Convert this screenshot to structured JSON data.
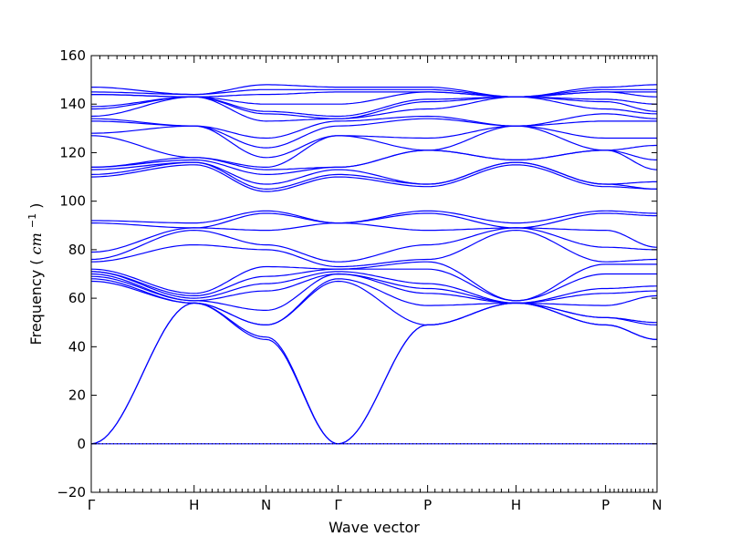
{
  "chart_data": {
    "type": "line",
    "xlabel": "Wave vector",
    "ylabel": "Frequency",
    "ylabel_unit_base": "cm",
    "ylabel_unit_exp": "−1",
    "ylim": [
      -20,
      160
    ],
    "y_ticks": [
      -20,
      0,
      20,
      40,
      60,
      80,
      100,
      120,
      140,
      160
    ],
    "y_tick_labels": [
      "−20",
      "0",
      "20",
      "40",
      "60",
      "80",
      "100",
      "120",
      "140",
      "160"
    ],
    "x_ticks": [
      {
        "label": "Γ",
        "pos": 0
      },
      {
        "label": "H",
        "pos": 1
      },
      {
        "label": "N",
        "pos": 1.7
      },
      {
        "label": "Γ",
        "pos": 2.4
      },
      {
        "label": "P",
        "pos": 3.27
      },
      {
        "label": "H",
        "pos": 4.13
      },
      {
        "label": "P",
        "pos": 5.0
      },
      {
        "label": "N",
        "pos": 5.5
      }
    ],
    "xlim": [
      0,
      5.5
    ],
    "zero_line": true,
    "line_color": "#0000ff",
    "band_nodes": [
      [
        0,
        0,
        0,
        0,
        0,
        0,
        0,
        0
      ],
      [
        0,
        58,
        44,
        0,
        49,
        58,
        49,
        43
      ],
      [
        0,
        58,
        43,
        0,
        49,
        58,
        49,
        43
      ],
      [
        67,
        58,
        49,
        67,
        49,
        58,
        52,
        49
      ],
      [
        68,
        58,
        49,
        68,
        57,
        58,
        52,
        50
      ],
      [
        69,
        59,
        55,
        70,
        62,
        58,
        57,
        61
      ],
      [
        70,
        59,
        63,
        70,
        64,
        58,
        62,
        63
      ],
      [
        71,
        60,
        66,
        71,
        66,
        58,
        64,
        65
      ],
      [
        71,
        61,
        69,
        72,
        72,
        59,
        70,
        70
      ],
      [
        72,
        62,
        73,
        72,
        75,
        59,
        74,
        74
      ],
      [
        75,
        82,
        80,
        73,
        76,
        88,
        75,
        76
      ],
      [
        76,
        88,
        82,
        75,
        82,
        89,
        81,
        80
      ],
      [
        79,
        89,
        88,
        91,
        88,
        89,
        88,
        81
      ],
      [
        91,
        89,
        95,
        91,
        95,
        89,
        95,
        94
      ],
      [
        92,
        91,
        96,
        91,
        96,
        91,
        96,
        95
      ],
      [
        110,
        115,
        104,
        110,
        106,
        115,
        106,
        105
      ],
      [
        111,
        116,
        105,
        111,
        107,
        116,
        107,
        105
      ],
      [
        113,
        116,
        107,
        113,
        107,
        116,
        107,
        108
      ],
      [
        114,
        117,
        111,
        114,
        121,
        117,
        121,
        113
      ],
      [
        114,
        118,
        113,
        114,
        121,
        117,
        121,
        117
      ],
      [
        127,
        118,
        114,
        127,
        121,
        131,
        121,
        123
      ],
      [
        128,
        131,
        118,
        127,
        126,
        131,
        126,
        126
      ],
      [
        133,
        131,
        122,
        131,
        134,
        131,
        133,
        133
      ],
      [
        134,
        131,
        126,
        133,
        135,
        131,
        136,
        134
      ],
      [
        135,
        143,
        133,
        134,
        138,
        143,
        138,
        136
      ],
      [
        138,
        143,
        136,
        134,
        141,
        143,
        141,
        137
      ],
      [
        139,
        143,
        137,
        135,
        142,
        143,
        142,
        140
      ],
      [
        144,
        143,
        140,
        140,
        145,
        143,
        145,
        143
      ],
      [
        144,
        143,
        144,
        145,
        145,
        143,
        145,
        145
      ],
      [
        145,
        144,
        146,
        146,
        146,
        143,
        146,
        146
      ],
      [
        147,
        144,
        148,
        147,
        147,
        143,
        147,
        148
      ]
    ]
  }
}
